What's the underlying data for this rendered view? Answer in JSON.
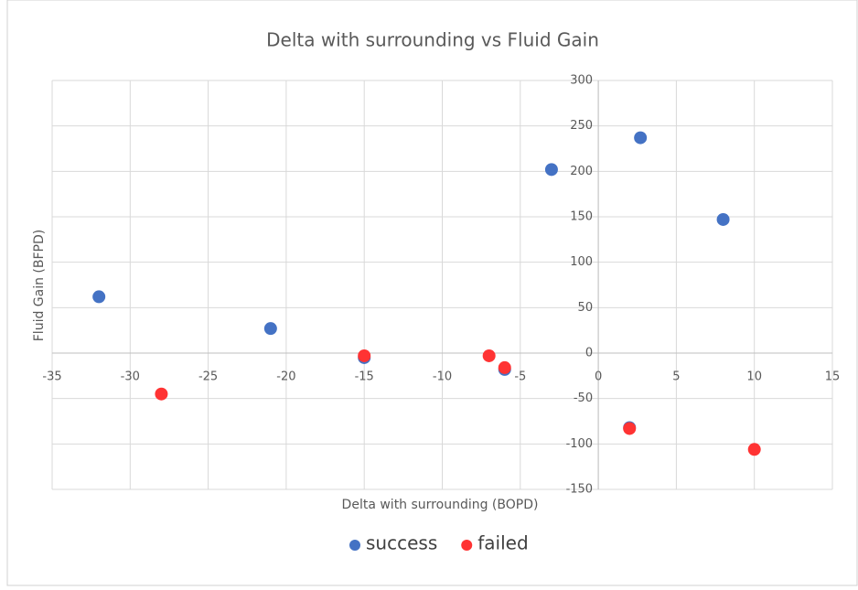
{
  "chart_data": {
    "type": "scatter",
    "title": "Delta with surrounding vs Fluid Gain",
    "x_label": "Delta with surrounding (BOPD)",
    "y_label": "Fluid Gain (BFPD)",
    "series": [
      {
        "name": "success",
        "color": "#4472c4",
        "x": [
          -32,
          -21,
          -15,
          -6,
          -3,
          2.7,
          8,
          2
        ],
        "values": [
          62,
          27,
          -5,
          -18,
          202,
          237,
          147,
          -82
        ]
      },
      {
        "name": "failed",
        "color": "#ff3333",
        "x": [
          -28,
          -15,
          -7,
          -6,
          2,
          10
        ],
        "values": [
          -45,
          -3,
          -3,
          -16,
          -83,
          -106
        ]
      }
    ],
    "xlim": [
      -35,
      15
    ],
    "xticks": [
      -35,
      -30,
      -25,
      -20,
      -15,
      -10,
      -5,
      0,
      5,
      10,
      15
    ],
    "ylim": [
      -150,
      300
    ],
    "yticks": [
      -150,
      -100,
      -50,
      0,
      50,
      100,
      150,
      200,
      250,
      300
    ],
    "grid": true,
    "legend": "bottom"
  }
}
